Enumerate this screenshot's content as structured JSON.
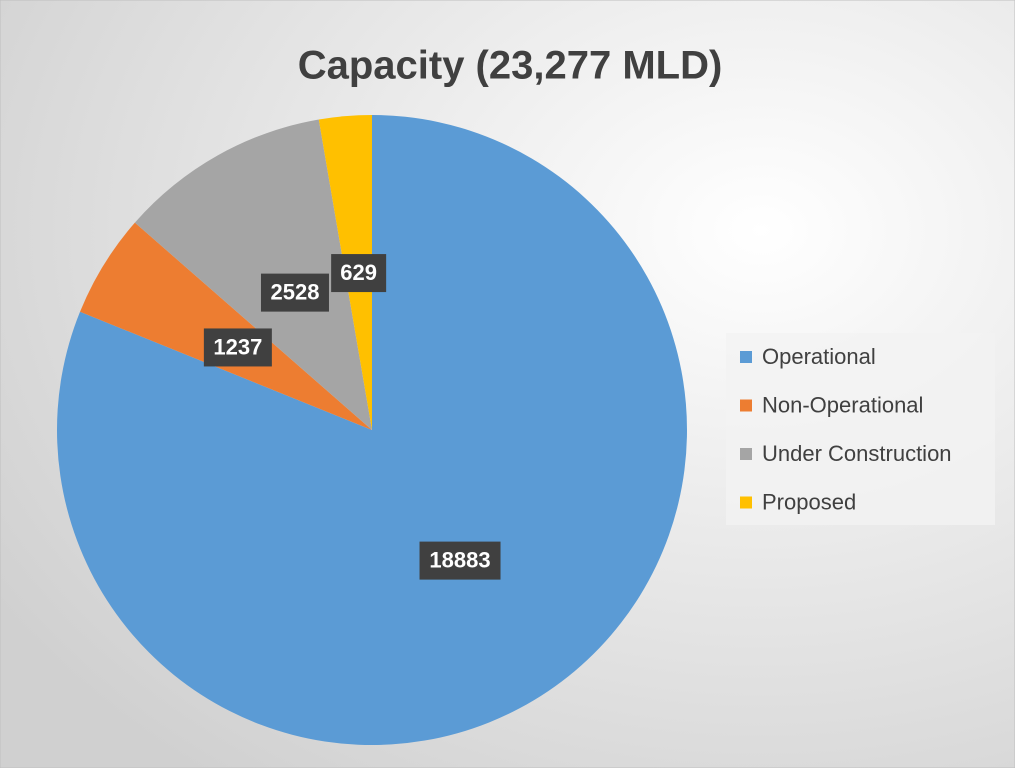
{
  "chart_data": {
    "type": "pie",
    "title": "Capacity (23,277 MLD)",
    "categories": [
      "Operational",
      "Non-Operational",
      "Under Construction",
      "Proposed"
    ],
    "values": [
      18883,
      1237,
      2528,
      629
    ],
    "colors": [
      "#5b9bd5",
      "#ed7d31",
      "#a5a5a5",
      "#ffc000"
    ],
    "legend": "right"
  }
}
